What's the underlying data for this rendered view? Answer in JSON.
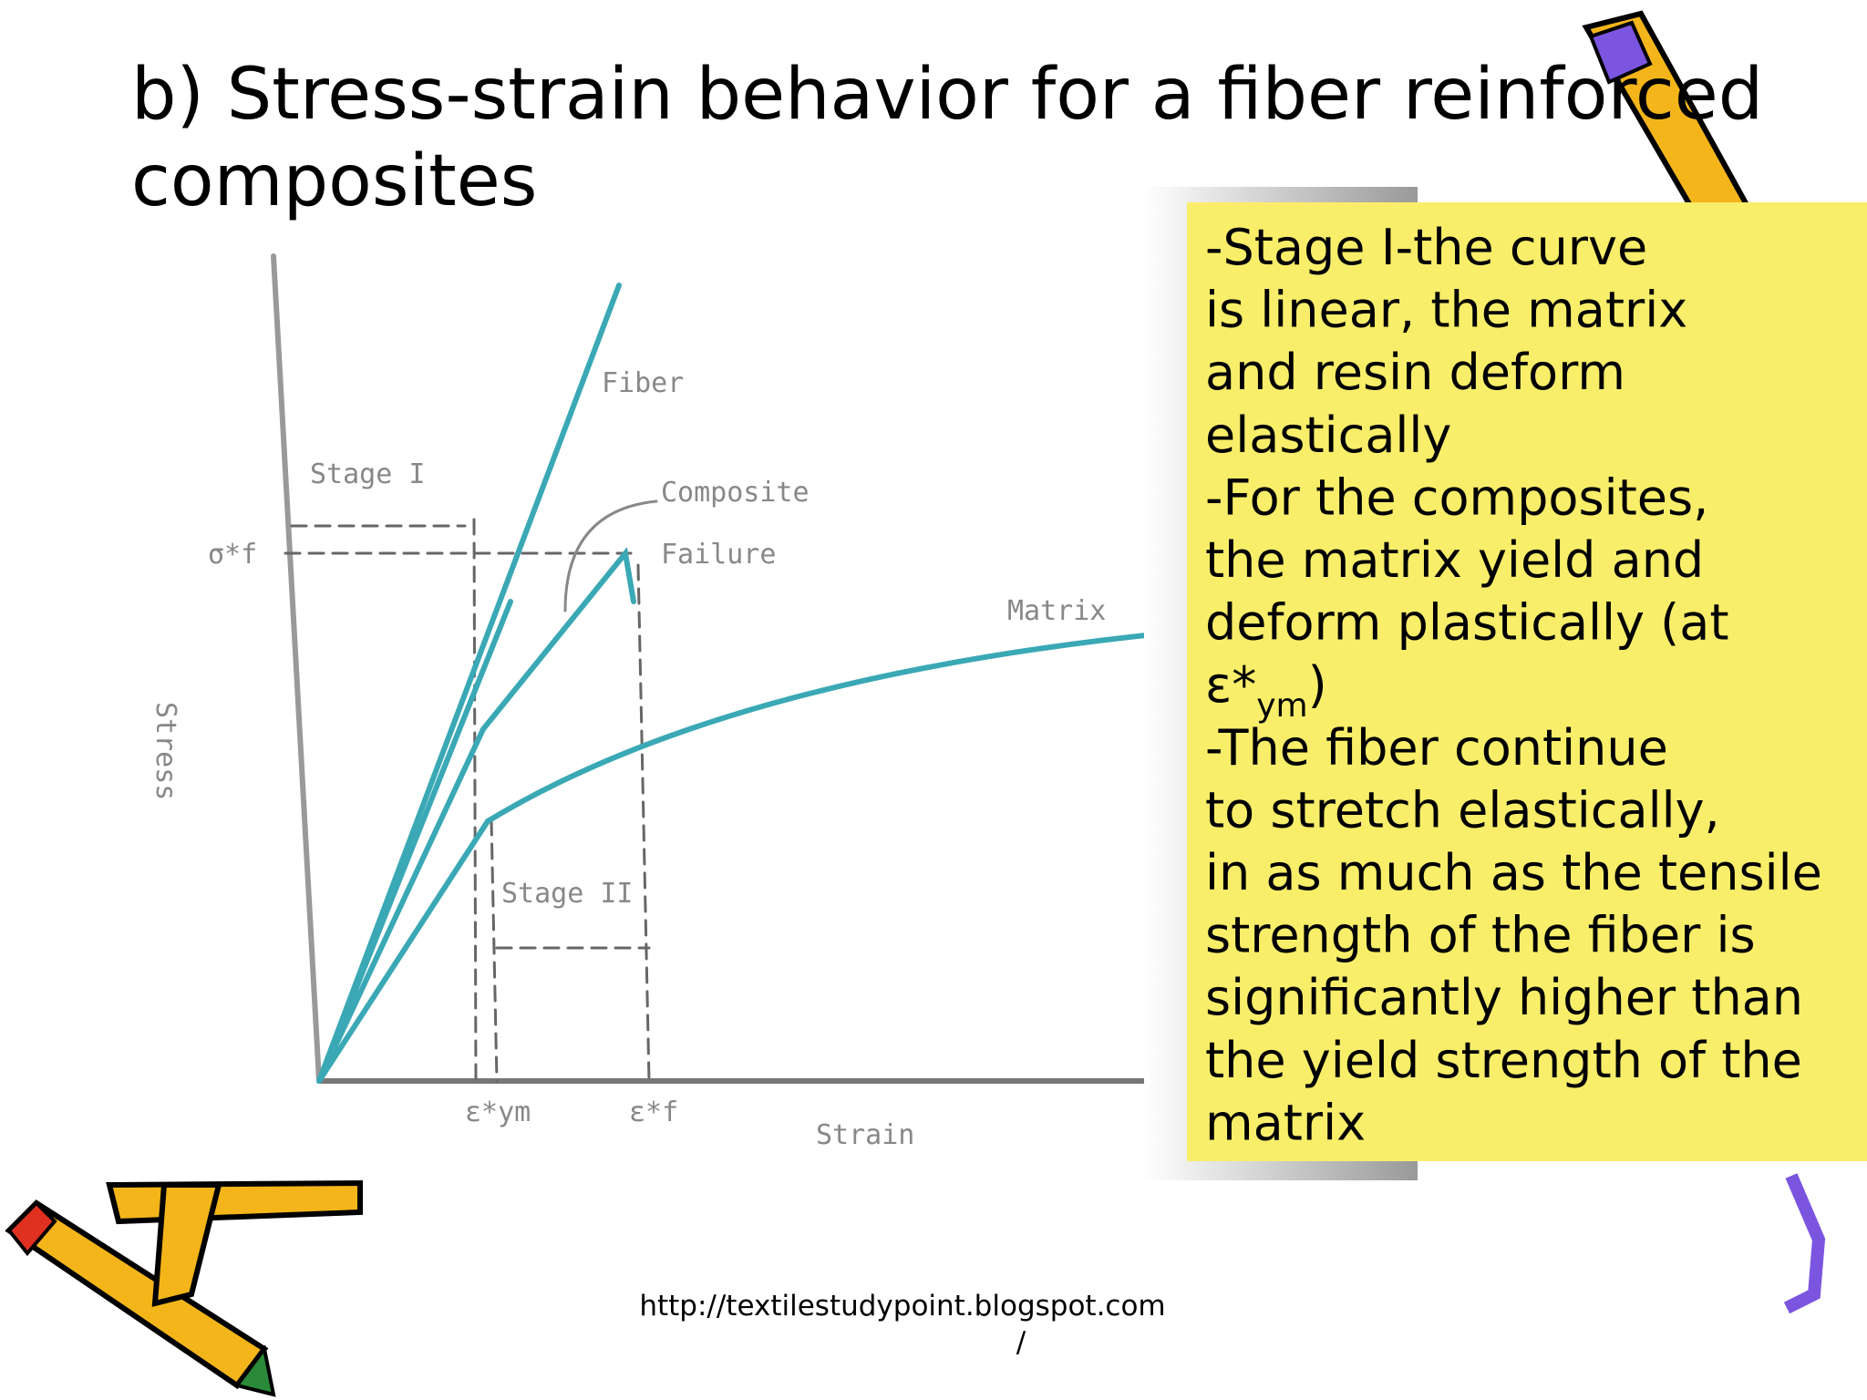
{
  "title_lines": [
    "b) Stress-strain behavior for a fiber reinforced",
    "composites"
  ],
  "diagram": {
    "labels": {
      "fiber": "Fiber",
      "composite": "Composite",
      "failure": "Failure",
      "matrix": "Matrix",
      "stage1": "Stage I",
      "stage2": "Stage II",
      "y_axis": "Stress",
      "x_axis": "Strain",
      "sigma": "σ*f",
      "eps_ym": "ε*ym",
      "eps_f": "ε*f"
    }
  },
  "note": {
    "lines": [
      "-Stage I-the curve",
      "is linear, the matrix",
      "and resin deform",
      "elastically",
      "-For the composites,",
      "the matrix yield and",
      "deform plastically (at"
    ],
    "eps": {
      "text": "ε*",
      "sub": "ym",
      "tail": ")"
    },
    "lines2": [
      "-The fiber continue",
      "to stretch elastically,",
      "in as much as the tensile",
      "strength of the fiber is",
      "significantly higher than",
      "the yield strength of the",
      "matrix"
    ]
  },
  "footer": [
    "http://textilestudypoint.blogspot.com",
    "/"
  ]
}
